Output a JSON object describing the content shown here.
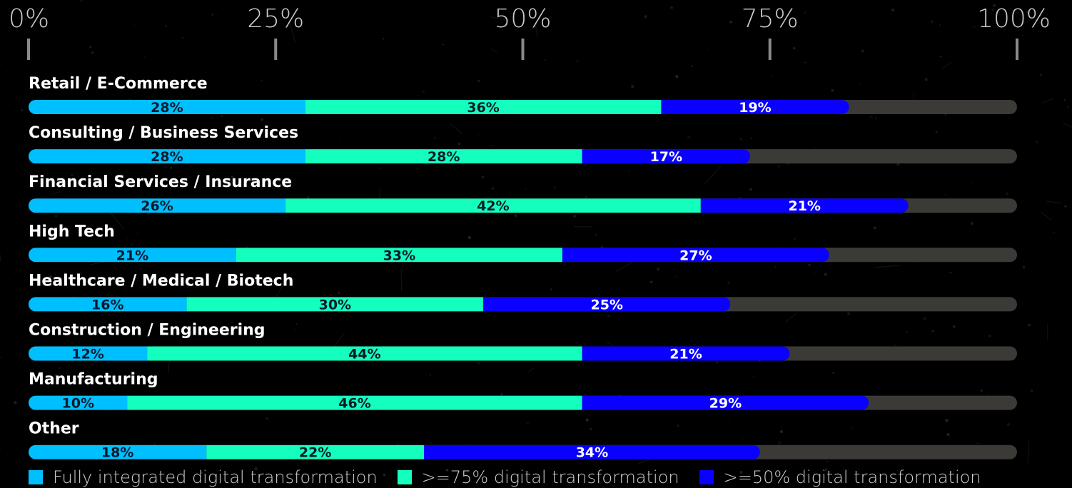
{
  "colors": {
    "background": "#000000",
    "track": "#3b3a37",
    "fully_integrated": "#00bfff",
    "seventy_five": "#14ffbe",
    "fifty": "#0a00ff",
    "tick": "#8a8a8a"
  },
  "chart_data": {
    "type": "bar",
    "orientation": "horizontal",
    "stacked": true,
    "xlim": [
      0,
      100
    ],
    "x_ticks": [
      "0%",
      "25%",
      "50%",
      "75%",
      "100%"
    ],
    "categories": [
      "Retail / E-Commerce",
      "Consulting / Business Services",
      "Financial Services / Insurance",
      "High Tech",
      "Healthcare / Medical / Biotech",
      "Construction / Engineering",
      "Manufacturing",
      "Other"
    ],
    "series": [
      {
        "name": "Fully integrated digital transformation",
        "color": "#00bfff",
        "values": [
          28,
          28,
          26,
          21,
          16,
          12,
          10,
          18
        ],
        "labels": [
          "28%",
          "28%",
          "26%",
          "21%",
          "16%",
          "12%",
          "10%",
          "18%"
        ]
      },
      {
        "name": ">=75% digital transformation",
        "color": "#14ffbe",
        "values": [
          36,
          28,
          42,
          33,
          30,
          44,
          46,
          22
        ],
        "labels": [
          "36%",
          "28%",
          "42%",
          "33%",
          "30%",
          "44%",
          "46%",
          "22%"
        ]
      },
      {
        "name": ">=50% digital transformation",
        "color": "#0a00ff",
        "values": [
          19,
          17,
          21,
          27,
          25,
          21,
          29,
          34
        ],
        "labels": [
          "19%",
          "17%",
          "21%",
          "27%",
          "25%",
          "21%",
          "29%",
          "34%"
        ]
      }
    ],
    "grid": false,
    "legend_position": "bottom-left"
  }
}
